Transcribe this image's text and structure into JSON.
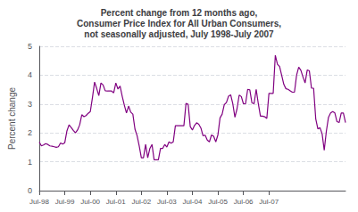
{
  "chart_data": {
    "type": "line",
    "title": "Percent change from 12 months ago,\nConsumer Price Index for All Urban Consumers,\nnot seasonally adjusted, July 1998-July 2007",
    "ylabel": "Percent change",
    "color": "#800080",
    "categories": [
      "Jul-98",
      null,
      null,
      null,
      null,
      null,
      null,
      null,
      null,
      null,
      null,
      null,
      "Jul-99",
      null,
      null,
      null,
      null,
      null,
      null,
      null,
      null,
      null,
      null,
      null,
      "Jul-00",
      null,
      null,
      null,
      null,
      null,
      null,
      null,
      null,
      null,
      null,
      null,
      "Jul-01",
      null,
      null,
      null,
      null,
      null,
      null,
      null,
      null,
      null,
      null,
      null,
      "Jul-02",
      null,
      null,
      null,
      null,
      null,
      null,
      null,
      null,
      null,
      null,
      null,
      "Jul-03",
      null,
      null,
      null,
      null,
      null,
      null,
      null,
      null,
      null,
      null,
      null,
      "Jul-04",
      null,
      null,
      null,
      null,
      null,
      null,
      null,
      null,
      null,
      null,
      null,
      "Jul-05",
      null,
      null,
      null,
      null,
      null,
      null,
      null,
      null,
      null,
      null,
      null,
      "Jul-06",
      null,
      null,
      null,
      null,
      null,
      null,
      null,
      null,
      null,
      null,
      null,
      "Jul-07",
      null,
      null,
      null,
      null,
      null,
      null,
      null,
      null,
      null,
      null,
      null,
      null,
      null,
      null,
      null,
      null,
      null,
      null,
      null,
      null,
      null,
      null,
      null,
      null,
      null,
      null,
      null,
      null,
      null,
      null,
      null,
      null,
      null,
      null,
      null,
      null
    ],
    "values": [
      1.68,
      1.55,
      1.58,
      1.63,
      1.6,
      1.55,
      1.54,
      1.52,
      1.5,
      1.52,
      1.65,
      1.61,
      1.66,
      2.07,
      2.28,
      2.19,
      2.09,
      2.0,
      2.1,
      2.28,
      2.63,
      2.56,
      2.6,
      2.68,
      2.74,
      3.22,
      3.76,
      3.54,
      3.29,
      3.73,
      3.66,
      3.46,
      3.45,
      3.45,
      3.45,
      3.39,
      3.73,
      3.52,
      3.62,
      3.27,
      2.96,
      2.69,
      2.93,
      2.72,
      2.65,
      2.13,
      1.9,
      1.55,
      1.14,
      1.14,
      1.6,
      1.14,
      1.46,
      1.6,
      1.07,
      1.07,
      1.07,
      1.46,
      1.46,
      1.6,
      1.51,
      1.69,
      1.64,
      1.69,
      2.25,
      2.25,
      2.25,
      2.25,
      2.25,
      3.02,
      2.99,
      2.22,
      2.1,
      2.26,
      2.35,
      2.3,
      2.17,
      1.9,
      1.92,
      1.75,
      1.69,
      1.93,
      1.88,
      1.69,
      1.93,
      2.52,
      2.65,
      2.98,
      3.05,
      3.27,
      3.32,
      3.01,
      2.54,
      2.84,
      3.31,
      3.26,
      3.01,
      3.01,
      3.51,
      3.49,
      3.04,
      3.01,
      3.51,
      3.01,
      2.58,
      2.58,
      2.56,
      2.5,
      3.37,
      3.37,
      3.37,
      4.69,
      4.38,
      4.3,
      3.99,
      3.68,
      3.53,
      3.51,
      3.46,
      3.41,
      3.41,
      4.0,
      4.28,
      4.17,
      3.94,
      3.73,
      4.18,
      4.15,
      3.55,
      3.55,
      2.49,
      2.14,
      2.18,
      1.97,
      1.4,
      2.06,
      2.54,
      2.69,
      2.74,
      2.69,
      2.39,
      2.36,
      2.69,
      2.69,
      2.36
    ],
    "ylim": [
      0,
      5
    ],
    "yticks": [
      0,
      1,
      2,
      3,
      4,
      5
    ],
    "grid": true
  }
}
